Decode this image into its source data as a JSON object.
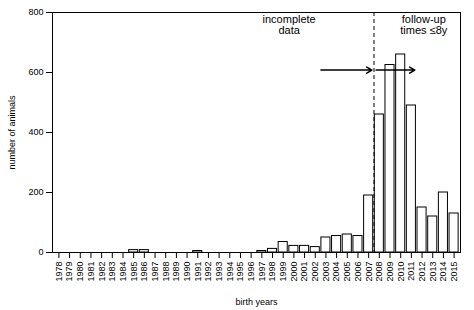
{
  "chart_data": {
    "type": "bar",
    "xlabel": "birth years",
    "ylabel": "number of animals",
    "x": [
      1978,
      1979,
      1980,
      1981,
      1982,
      1983,
      1984,
      1985,
      1986,
      1987,
      1988,
      1989,
      1990,
      1991,
      1992,
      1993,
      1994,
      1995,
      1996,
      1997,
      1998,
      1999,
      2000,
      2001,
      2002,
      2003,
      2004,
      2005,
      2006,
      2007,
      2008,
      2009,
      2010,
      2011,
      2012,
      2013,
      2014,
      2015
    ],
    "values": [
      0,
      0,
      0,
      0,
      0,
      0,
      0,
      8,
      8,
      0,
      0,
      0,
      0,
      5,
      0,
      0,
      0,
      0,
      0,
      5,
      12,
      35,
      22,
      22,
      18,
      50,
      55,
      60,
      55,
      190,
      460,
      625,
      660,
      490,
      150,
      120,
      200,
      130
    ],
    "color": "white",
    "xlim": [
      1977.4,
      2015.6
    ],
    "xticks": [
      1978,
      1979,
      1980,
      1981,
      1982,
      1983,
      1984,
      1985,
      1986,
      1987,
      1988,
      1989,
      1990,
      1991,
      1992,
      1993,
      1994,
      1995,
      1996,
      1997,
      1998,
      1999,
      2000,
      2001,
      2002,
      2003,
      2004,
      2005,
      2006,
      2007,
      2008,
      2009,
      2010,
      2011,
      2012,
      2013,
      2014,
      2015
    ],
    "ylim": [
      0,
      800
    ],
    "yticks": [
      0,
      200,
      400,
      600,
      800
    ],
    "grid": false,
    "vlines": [
      {
        "x": 2007.5,
        "color": "black",
        "line_style": "dashed"
      }
    ],
    "annotations": [
      "incomplete\ndata",
      "follow-up\ntimes ≤8y"
    ]
  }
}
